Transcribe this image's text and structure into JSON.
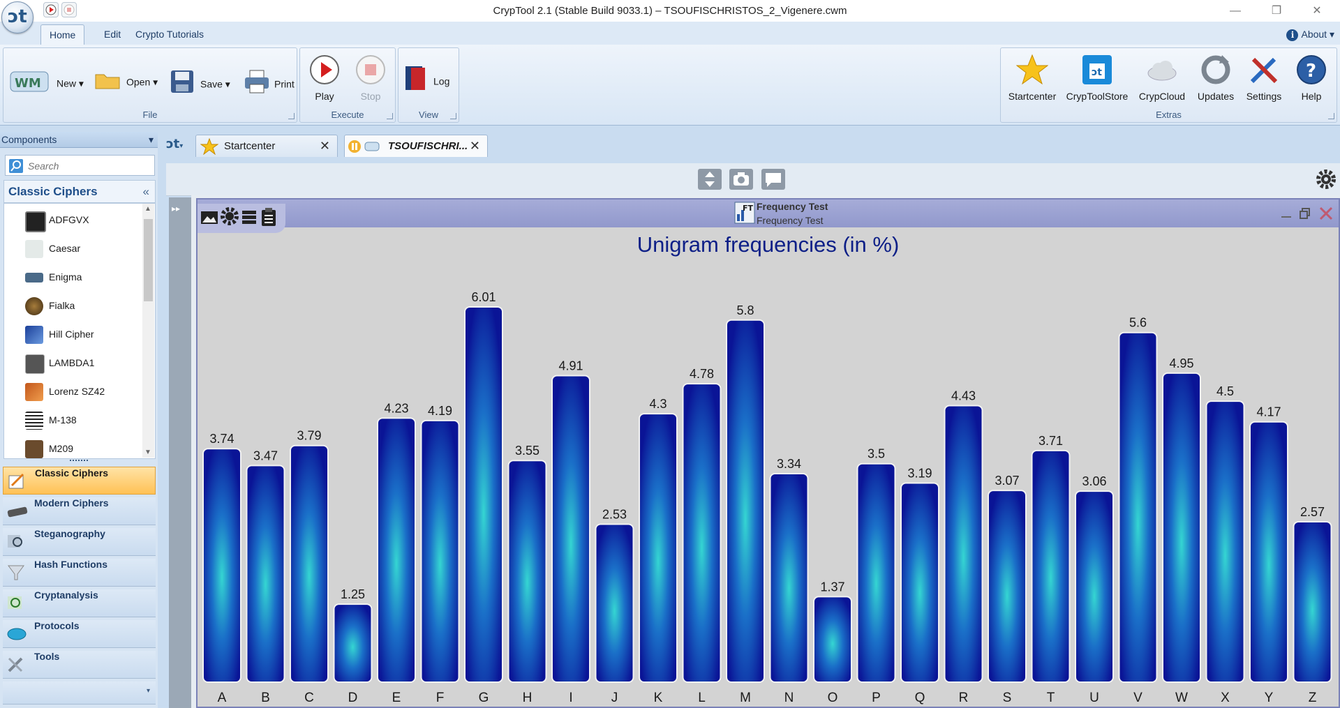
{
  "window": {
    "title": "CrypTool 2.1 (Stable Build 9033.1) – TSOUFISCHRISTOS_2_Vigenere.cwm"
  },
  "ribbon": {
    "tabs": [
      "Home",
      "Edit",
      "Crypto Tutorials"
    ],
    "about": "About",
    "file_group": {
      "label": "File",
      "new": "New",
      "open": "Open",
      "save": "Save",
      "print": "Print"
    },
    "execute_group": {
      "label": "Execute",
      "play": "Play",
      "stop": "Stop"
    },
    "view_group": {
      "label": "View",
      "log": "Log"
    },
    "extras_group": {
      "label": "Extras",
      "startcenter": "Startcenter",
      "cryptoolstore": "CrypToolStore",
      "crypcloud": "CrypCloud",
      "updates": "Updates",
      "settings": "Settings",
      "help": "Help"
    }
  },
  "sidebar": {
    "header": "Components",
    "search_placeholder": "Search",
    "category": "Classic Ciphers",
    "items": [
      {
        "label": "ADFGVX",
        "icon": "adfgvx-icon"
      },
      {
        "label": "Caesar",
        "icon": "caesar-icon"
      },
      {
        "label": "Enigma",
        "icon": "enigma-icon"
      },
      {
        "label": "Fialka",
        "icon": "fialka-icon"
      },
      {
        "label": "Hill Cipher",
        "icon": "hill-cipher-icon"
      },
      {
        "label": "LAMBDA1",
        "icon": "lambda1-icon"
      },
      {
        "label": "Lorenz SZ42",
        "icon": "lorenz-icon"
      },
      {
        "label": "M-138",
        "icon": "m138-icon"
      },
      {
        "label": "M209",
        "icon": "m209-icon"
      }
    ],
    "nav": [
      {
        "label": "Classic Ciphers",
        "active": true
      },
      {
        "label": "Modern Ciphers",
        "active": false
      },
      {
        "label": "Steganography",
        "active": false
      },
      {
        "label": "Hash Functions",
        "active": false
      },
      {
        "label": "Cryptanalysis",
        "active": false
      },
      {
        "label": "Protocols",
        "active": false
      },
      {
        "label": "Tools",
        "active": false
      }
    ]
  },
  "documents": {
    "tabs": [
      {
        "label": "Startcenter"
      },
      {
        "label": "TSOUFISCHRI..."
      }
    ]
  },
  "plugin": {
    "title": "Frequency Test",
    "subtitle": "Frequency Test",
    "icon_text": "FT"
  },
  "chart_data": {
    "type": "bar",
    "title": "Unigram frequencies (in %)",
    "categories": [
      "A",
      "B",
      "C",
      "D",
      "E",
      "F",
      "G",
      "H",
      "I",
      "J",
      "K",
      "L",
      "M",
      "N",
      "O",
      "P",
      "Q",
      "R",
      "S",
      "T",
      "U",
      "V",
      "W",
      "X",
      "Y",
      "Z"
    ],
    "values": [
      3.74,
      3.47,
      3.79,
      1.25,
      4.23,
      4.19,
      6.01,
      3.55,
      4.91,
      2.53,
      4.3,
      4.78,
      5.8,
      3.34,
      1.37,
      3.5,
      3.19,
      4.43,
      3.07,
      3.71,
      3.06,
      5.6,
      4.95,
      4.5,
      4.17,
      2.57
    ],
    "value_labels": [
      "3.74",
      "3.47",
      "3.79",
      "1.25",
      "4.23",
      "4.19",
      "6.01",
      "3.55",
      "4.91",
      "2.53",
      "4.3",
      "4.78",
      "5.8",
      "3.34",
      "1.37",
      "3.5",
      "3.19",
      "4.43",
      "3.07",
      "3.71",
      "3.06",
      "5.6",
      "4.95",
      "4.5",
      "4.17",
      "2.57"
    ],
    "colors": {
      "bar_edge": "#0a1496",
      "bar_center": "#35d6d2",
      "label": "#1a1a1a",
      "title": "#0d1f87"
    }
  }
}
